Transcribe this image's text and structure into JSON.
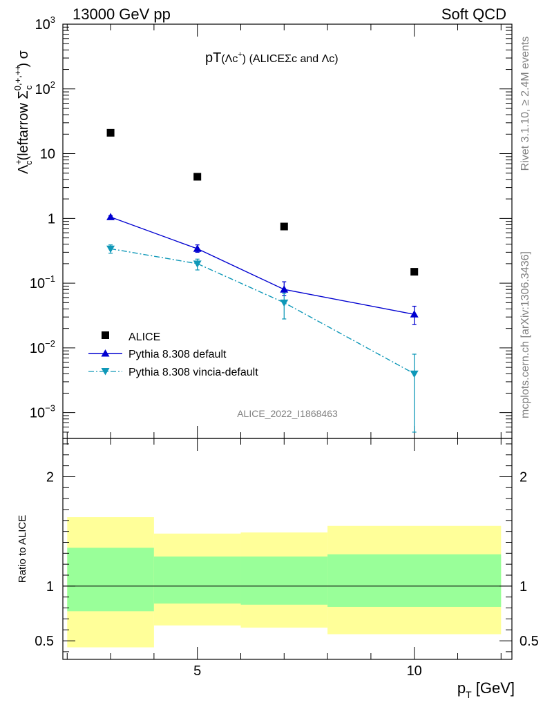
{
  "header": {
    "left": "13000 GeV pp",
    "right": "Soft QCD"
  },
  "side_text": {
    "rivet": "Rivet 3.1.10, ≥ 2.4M events",
    "mcplots": "mcplots.cern.ch [arXiv:1306.3436]"
  },
  "chart_data": [
    {
      "type": "scatter",
      "title": "pT(Λc⁺) (ALICE Σc and Λc)",
      "ylabel": "Λc⁺(leftarrow Σc⁰ʲ⁺ʲ⁺⁺) σ",
      "ylabel_parts": {
        "lambda": "Λ",
        "lambda_sup": "+",
        "lambda_sub": "c",
        "middle": "(leftarrow Σ",
        "sigma_sup": "0,+,++",
        "sigma_sub": "c",
        "tail": ") σ"
      },
      "title_parts": {
        "main": "pT",
        "paren_open": "(Λc",
        "sup": "+",
        "rest": ") (ALICEΣc and Λc)"
      },
      "xlim": [
        1.9,
        12.25
      ],
      "ylim": [
        0.0004,
        1000
      ],
      "yscale": "log",
      "y_ticks": [
        {
          "base": "10",
          "exp": "3"
        },
        {
          "base": "10",
          "exp": "2"
        },
        {
          "base": "10",
          "exp": ""
        },
        {
          "base": "1",
          "exp": ""
        },
        {
          "base": "10",
          "exp": "−1"
        },
        {
          "base": "10",
          "exp": "−2"
        },
        {
          "base": "10",
          "exp": "−3"
        }
      ],
      "y_tick_values": [
        1000,
        100,
        10,
        1,
        0.1,
        0.01,
        0.001
      ],
      "watermark": "ALICE_2022_I1868463",
      "legend_position": "bottom-left",
      "series": [
        {
          "name": "ALICE",
          "marker": "square",
          "color": "#000000",
          "x": [
            3,
            5,
            7,
            10
          ],
          "y": [
            21,
            4.4,
            0.75,
            0.15
          ]
        },
        {
          "name": "Pythia 8.308 default",
          "marker": "triangle-up",
          "line": "solid",
          "color": "#0000d0",
          "x": [
            3,
            5,
            7,
            10
          ],
          "y": [
            1.05,
            0.34,
            0.08,
            0.033
          ],
          "err_low": [
            1.0,
            0.3,
            0.064,
            0.023
          ],
          "err_high": [
            1.1,
            0.39,
            0.105,
            0.044
          ]
        },
        {
          "name": "Pythia 8.308 vincia-default",
          "marker": "triangle-down",
          "line": "dashdot",
          "color": "#0f98b8",
          "x": [
            3,
            5,
            7,
            10
          ],
          "y": [
            0.34,
            0.2,
            0.05,
            0.004
          ],
          "err_low": [
            0.29,
            0.16,
            0.028,
            0.0005
          ],
          "err_high": [
            0.39,
            0.235,
            0.07,
            0.008
          ]
        }
      ]
    },
    {
      "type": "area",
      "ylabel": "Ratio to ALICE",
      "xlabel_parts": {
        "p": "p",
        "sub": "T",
        "unit": " [GeV]"
      },
      "xlim": [
        1.9,
        12.25
      ],
      "ylim": [
        0.33,
        2.35
      ],
      "x_tick_labels": [
        {
          "value": 5,
          "label": "5"
        },
        {
          "value": 10,
          "label": "10"
        }
      ],
      "y_tick_labels": [
        {
          "value": 0.5,
          "label": "0.5"
        },
        {
          "value": 1,
          "label": "1"
        },
        {
          "value": 2,
          "label": "2"
        }
      ],
      "reference_line": 1,
      "bands": [
        {
          "x_low": 2,
          "x_high": 4,
          "outer": [
            0.44,
            1.63
          ],
          "inner": [
            0.77,
            1.35
          ]
        },
        {
          "x_low": 4,
          "x_high": 6,
          "outer": [
            0.64,
            1.48
          ],
          "inner": [
            0.84,
            1.27
          ]
        },
        {
          "x_low": 6,
          "x_high": 8,
          "outer": [
            0.62,
            1.49
          ],
          "inner": [
            0.83,
            1.27
          ]
        },
        {
          "x_low": 8,
          "x_high": 12,
          "outer": [
            0.56,
            1.55
          ],
          "inner": [
            0.81,
            1.29
          ]
        }
      ],
      "colors": {
        "outer_band": "#ffff99",
        "inner_band": "#99ff99"
      }
    }
  ]
}
